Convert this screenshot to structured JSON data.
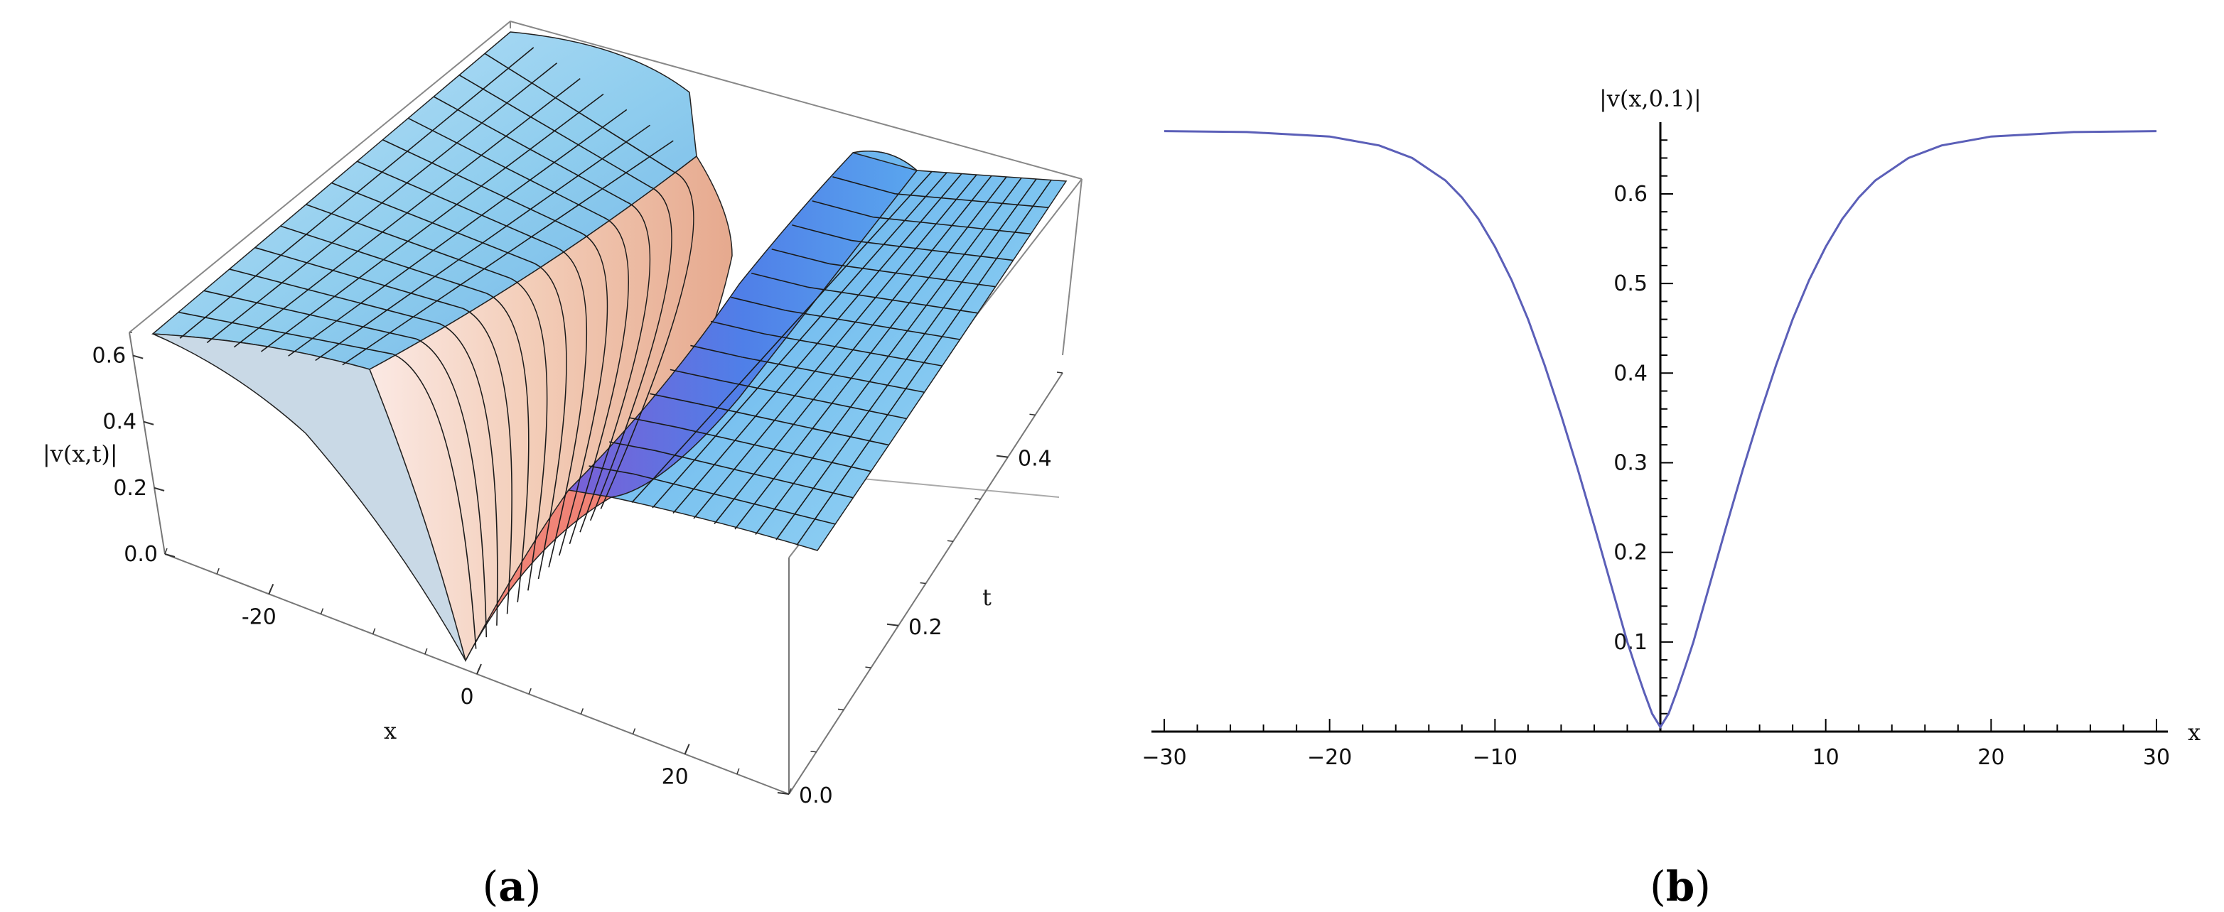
{
  "panel_labels": {
    "a": {
      "open": "(",
      "letter": "a",
      "close": ")"
    },
    "b": {
      "open": "(",
      "letter": "b",
      "close": ")"
    }
  },
  "chart_data": [
    {
      "type": "surface",
      "panel": "a",
      "zlabel": "|v(x,t)|",
      "xlabel": "x",
      "ylabel": "t",
      "x_ticks": [
        "-20",
        "0",
        "20"
      ],
      "t_ticks": [
        "0.0",
        "0.2",
        "0.4"
      ],
      "z_ticks": [
        "0.0",
        "0.2",
        "0.4",
        "0.6"
      ],
      "xlim": [
        -30,
        30
      ],
      "tlim": [
        0,
        0.5
      ],
      "zlim": [
        0,
        0.67
      ],
      "colors": {
        "surface_top": "#8fd0f0",
        "surface_mid": "#f4d4c4",
        "surface_blue": "#4f8df0",
        "cut_face": "#f07a6e",
        "mesh": "#1a1a1a"
      }
    },
    {
      "type": "line",
      "panel": "b",
      "ylabel": "|v(x,0.1)|",
      "xlabel": "x",
      "xlim": [
        -30,
        30
      ],
      "ylim": [
        0,
        0.68
      ],
      "x_ticks": [
        "−30",
        "−20",
        "−10",
        "10",
        "20",
        "30"
      ],
      "y_ticks": [
        "0.1",
        "0.2",
        "0.3",
        "0.4",
        "0.5",
        "0.6"
      ],
      "series": [
        {
          "color": "#5b5fb8",
          "x": [
            -30,
            -25,
            -20,
            -17,
            -15,
            -13,
            -12,
            -11,
            -10,
            -9,
            -8,
            -7,
            -6,
            -5,
            -4,
            -3,
            -2,
            -1.5,
            -1,
            -0.5,
            0,
            0.5,
            1,
            1.5,
            2,
            3,
            4,
            5,
            6,
            7,
            8,
            9,
            10,
            11,
            12,
            13,
            15,
            17,
            20,
            25,
            30
          ],
          "y": [
            0.67,
            0.669,
            0.664,
            0.654,
            0.64,
            0.615,
            0.596,
            0.572,
            0.541,
            0.504,
            0.46,
            0.409,
            0.353,
            0.293,
            0.23,
            0.165,
            0.1,
            0.072,
            0.045,
            0.02,
            0.005,
            0.02,
            0.045,
            0.072,
            0.1,
            0.165,
            0.23,
            0.293,
            0.353,
            0.409,
            0.46,
            0.504,
            0.541,
            0.572,
            0.596,
            0.615,
            0.64,
            0.654,
            0.664,
            0.669,
            0.67
          ]
        }
      ]
    }
  ]
}
